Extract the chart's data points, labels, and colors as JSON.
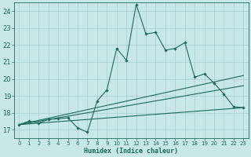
{
  "xlabel": "Humidex (Indice chaleur)",
  "xlim": [
    -0.5,
    23.5
  ],
  "ylim": [
    16.5,
    24.5
  ],
  "yticks": [
    17,
    18,
    19,
    20,
    21,
    22,
    23,
    24
  ],
  "xticks": [
    0,
    1,
    2,
    3,
    4,
    5,
    6,
    7,
    8,
    9,
    10,
    11,
    12,
    13,
    14,
    15,
    16,
    17,
    18,
    19,
    20,
    21,
    22,
    23
  ],
  "bg_color": "#c8e8e8",
  "grid_color": "#a8cccc",
  "line_color": "#1a6b5a",
  "curve": {
    "x": [
      0,
      1,
      2,
      3,
      4,
      5,
      6,
      7,
      8,
      9,
      10,
      11,
      12,
      13,
      14,
      15,
      16,
      17,
      18,
      19,
      20,
      21,
      22,
      23
    ],
    "y": [
      17.3,
      17.5,
      17.4,
      17.6,
      17.65,
      17.7,
      17.1,
      16.85,
      18.7,
      19.35,
      21.8,
      21.1,
      24.4,
      22.65,
      22.75,
      21.7,
      21.8,
      22.15,
      20.1,
      20.3,
      19.75,
      19.1,
      18.35,
      18.3
    ]
  },
  "straight_lines": [
    {
      "x": [
        0,
        23
      ],
      "y": [
        17.3,
        18.3
      ]
    },
    {
      "x": [
        0,
        23
      ],
      "y": [
        17.3,
        19.6
      ]
    },
    {
      "x": [
        0,
        23
      ],
      "y": [
        17.3,
        20.2
      ]
    }
  ]
}
